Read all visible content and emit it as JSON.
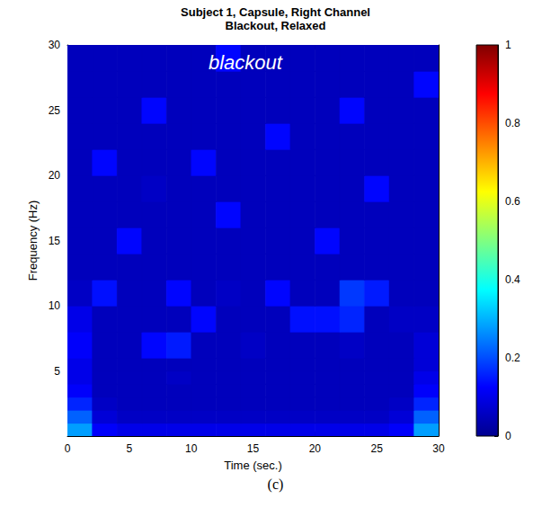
{
  "chart_data": {
    "type": "heatmap",
    "title": "Subject 1, Capsule, Right Channel",
    "subtitle": "Blackout, Relaxed",
    "annotation": "blackout",
    "caption": "(c)",
    "x_label": "Time (sec.)",
    "y_label": "Frequency (Hz)",
    "xlim": [
      0,
      30
    ],
    "xticks": [
      0,
      5,
      10,
      15,
      20,
      25,
      30
    ],
    "ylim": [
      0,
      30
    ],
    "yticks": [
      5,
      10,
      15,
      20,
      25,
      30
    ],
    "time_edges": [
      0,
      2,
      4,
      6,
      8,
      10,
      12,
      14,
      16,
      18,
      20,
      22,
      24,
      26,
      28,
      30
    ],
    "frequency_edges": [
      0,
      1,
      2,
      3,
      4,
      5,
      6,
      8,
      10,
      12,
      14,
      16,
      18,
      20,
      22,
      24,
      26,
      28,
      30
    ],
    "cells": [
      [
        0.28,
        0.12,
        0.1,
        0.1,
        0.1,
        0.1,
        0.1,
        0.1,
        0.1,
        0.1,
        0.1,
        0.1,
        0.1,
        0.12,
        0.28
      ],
      [
        0.22,
        0.08,
        0.06,
        0.06,
        0.06,
        0.06,
        0.06,
        0.06,
        0.06,
        0.06,
        0.06,
        0.06,
        0.06,
        0.08,
        0.22
      ],
      [
        0.16,
        0.06,
        0.05,
        0.05,
        0.05,
        0.05,
        0.05,
        0.05,
        0.05,
        0.05,
        0.05,
        0.05,
        0.05,
        0.06,
        0.16
      ],
      [
        0.12,
        0.05,
        0.05,
        0.05,
        0.05,
        0.05,
        0.05,
        0.05,
        0.05,
        0.05,
        0.05,
        0.05,
        0.05,
        0.05,
        0.12
      ],
      [
        0.1,
        0.05,
        0.05,
        0.05,
        0.06,
        0.05,
        0.05,
        0.05,
        0.05,
        0.05,
        0.05,
        0.05,
        0.05,
        0.05,
        0.1
      ],
      [
        0.1,
        0.05,
        0.05,
        0.05,
        0.05,
        0.05,
        0.05,
        0.05,
        0.05,
        0.05,
        0.05,
        0.05,
        0.05,
        0.05,
        0.08
      ],
      [
        0.12,
        0.05,
        0.05,
        0.13,
        0.15,
        0.05,
        0.05,
        0.06,
        0.05,
        0.05,
        0.05,
        0.06,
        0.05,
        0.05,
        0.08
      ],
      [
        0.1,
        0.05,
        0.05,
        0.05,
        0.05,
        0.13,
        0.05,
        0.05,
        0.05,
        0.14,
        0.14,
        0.16,
        0.05,
        0.06,
        0.06
      ],
      [
        0.06,
        0.14,
        0.05,
        0.05,
        0.13,
        0.05,
        0.06,
        0.05,
        0.13,
        0.05,
        0.05,
        0.18,
        0.15,
        0.05,
        0.05
      ],
      [
        0.05,
        0.05,
        0.05,
        0.05,
        0.05,
        0.05,
        0.05,
        0.05,
        0.05,
        0.05,
        0.05,
        0.05,
        0.05,
        0.05,
        0.05
      ],
      [
        0.05,
        0.05,
        0.13,
        0.05,
        0.05,
        0.05,
        0.05,
        0.05,
        0.05,
        0.05,
        0.13,
        0.05,
        0.05,
        0.05,
        0.05
      ],
      [
        0.05,
        0.05,
        0.05,
        0.05,
        0.05,
        0.05,
        0.13,
        0.05,
        0.05,
        0.05,
        0.05,
        0.05,
        0.05,
        0.05,
        0.05
      ],
      [
        0.05,
        0.05,
        0.05,
        0.06,
        0.05,
        0.05,
        0.05,
        0.05,
        0.05,
        0.05,
        0.05,
        0.05,
        0.13,
        0.05,
        0.05
      ],
      [
        0.05,
        0.13,
        0.05,
        0.05,
        0.05,
        0.13,
        0.05,
        0.05,
        0.05,
        0.05,
        0.05,
        0.05,
        0.05,
        0.05,
        0.05
      ],
      [
        0.05,
        0.05,
        0.05,
        0.05,
        0.05,
        0.05,
        0.05,
        0.05,
        0.13,
        0.05,
        0.05,
        0.05,
        0.05,
        0.05,
        0.05
      ],
      [
        0.05,
        0.05,
        0.05,
        0.13,
        0.05,
        0.05,
        0.05,
        0.05,
        0.05,
        0.05,
        0.05,
        0.13,
        0.05,
        0.05,
        0.05
      ],
      [
        0.05,
        0.05,
        0.05,
        0.05,
        0.05,
        0.05,
        0.05,
        0.05,
        0.05,
        0.05,
        0.05,
        0.05,
        0.05,
        0.05,
        0.13
      ],
      [
        0.05,
        0.05,
        0.05,
        0.05,
        0.05,
        0.05,
        0.13,
        0.05,
        0.05,
        0.05,
        0.05,
        0.05,
        0.05,
        0.05,
        0.05
      ]
    ],
    "color_range": [
      0,
      1
    ],
    "color_ticks": [
      0,
      0.2,
      0.4,
      0.6,
      0.8,
      1
    ]
  }
}
